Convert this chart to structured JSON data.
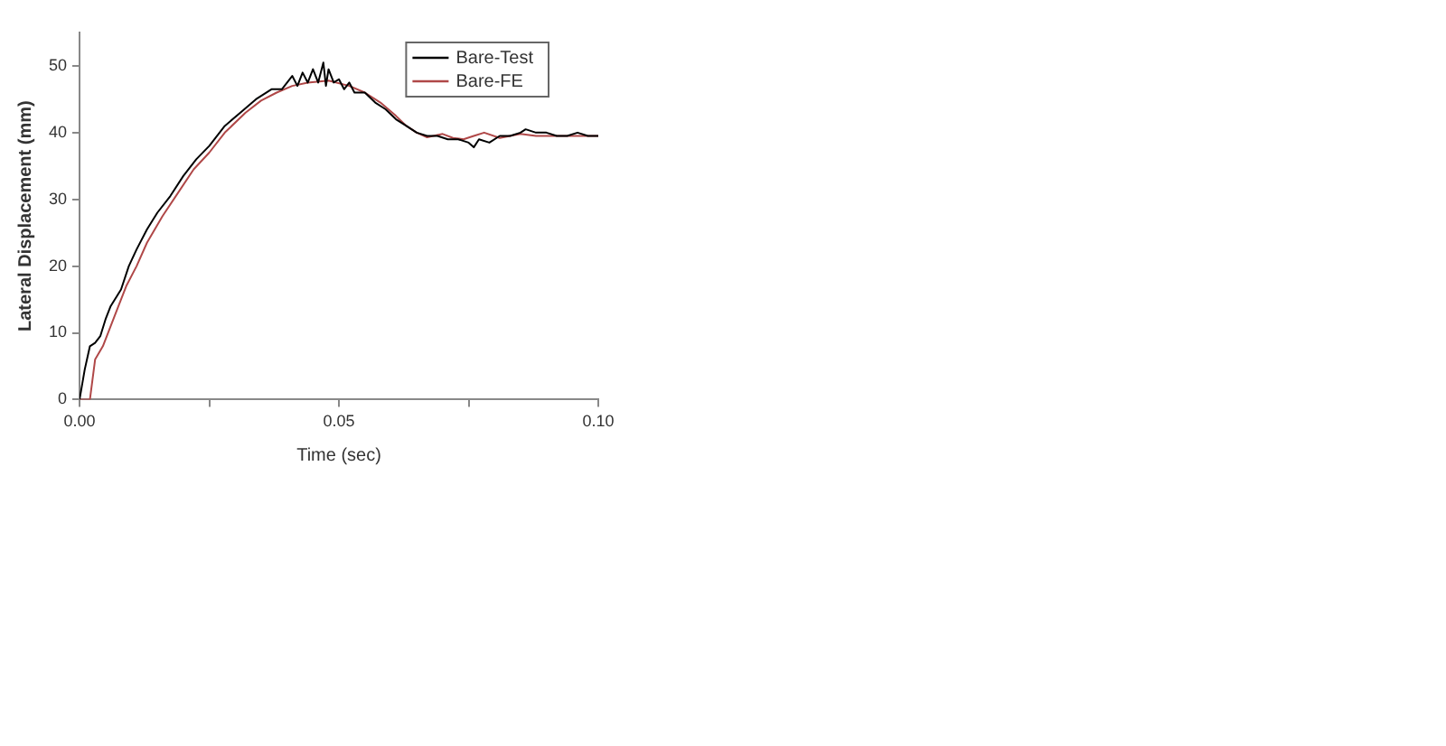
{
  "chart_data": {
    "type": "line",
    "xlabel": "Time (sec)",
    "ylabel": "Lateral Displacement (mm)",
    "xlim": [
      0,
      0.1
    ],
    "ylim": [
      0,
      55
    ],
    "xticks": [
      {
        "value": 0,
        "label": "0.00"
      },
      {
        "value": 0.025,
        "label": null
      },
      {
        "value": 0.05,
        "label": "0.05"
      },
      {
        "value": 0.075,
        "label": null
      },
      {
        "value": 0.1,
        "label": "0.10"
      }
    ],
    "yticks": [
      0,
      10,
      20,
      30,
      40,
      50
    ],
    "grid": false,
    "legend": "top right",
    "marker": "none",
    "line_style": "solid",
    "series": [
      {
        "name": "Bare-Test",
        "color": "#000000",
        "x": [
          0,
          0.001,
          0.002,
          0.003,
          0.004,
          0.005,
          0.006,
          0.008,
          0.0095,
          0.011,
          0.013,
          0.015,
          0.0175,
          0.02,
          0.0225,
          0.025,
          0.028,
          0.031,
          0.034,
          0.037,
          0.039,
          0.041,
          0.042,
          0.043,
          0.044,
          0.045,
          0.046,
          0.047,
          0.0475,
          0.048,
          0.049,
          0.05,
          0.051,
          0.052,
          0.053,
          0.055,
          0.057,
          0.059,
          0.061,
          0.063,
          0.065,
          0.067,
          0.069,
          0.071,
          0.073,
          0.075,
          0.076,
          0.077,
          0.079,
          0.081,
          0.083,
          0.085,
          0.086,
          0.088,
          0.09,
          0.092,
          0.094,
          0.096,
          0.098,
          0.1
        ],
        "values": [
          0,
          4.5,
          8,
          8.5,
          9.5,
          12,
          14,
          16.5,
          20,
          22.5,
          25.5,
          28,
          30.5,
          33.5,
          36,
          38,
          41,
          43,
          45,
          46.5,
          46.5,
          48.5,
          47,
          49,
          47.5,
          49.5,
          47.5,
          50.5,
          47,
          49.5,
          47.5,
          48,
          46.5,
          47.5,
          46,
          46,
          44.5,
          43.5,
          42,
          41,
          40,
          39.5,
          39.5,
          39,
          39,
          38.5,
          37.8,
          39,
          38.5,
          39.5,
          39.5,
          40,
          40.5,
          40,
          40,
          39.5,
          39.5,
          40,
          39.5,
          39.5
        ]
      },
      {
        "name": "Bare-FE",
        "color": "#b04848",
        "x": [
          0,
          0.002,
          0.003,
          0.0045,
          0.006,
          0.0075,
          0.009,
          0.011,
          0.013,
          0.016,
          0.019,
          0.022,
          0.025,
          0.028,
          0.032,
          0.035,
          0.038,
          0.041,
          0.044,
          0.048,
          0.052,
          0.055,
          0.058,
          0.061,
          0.063,
          0.065,
          0.067,
          0.07,
          0.072,
          0.074,
          0.076,
          0.078,
          0.081,
          0.083,
          0.085,
          0.088,
          0.09,
          0.095,
          0.1
        ],
        "values": [
          0,
          0,
          6,
          8,
          11,
          14,
          17,
          20,
          23.5,
          27.5,
          31,
          34.5,
          37,
          40,
          43,
          44.8,
          46,
          47,
          47.5,
          47.8,
          47,
          46,
          44.5,
          42.5,
          41,
          40,
          39.3,
          39.8,
          39.2,
          39,
          39.5,
          40,
          39.2,
          39.5,
          39.8,
          39.5,
          39.5,
          39.5,
          39.5
        ]
      }
    ]
  }
}
